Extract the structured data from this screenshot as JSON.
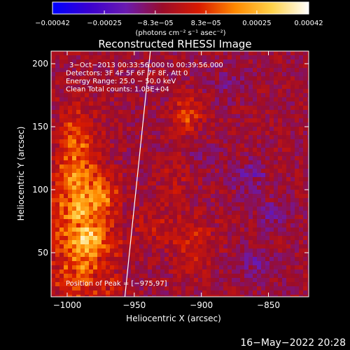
{
  "chart_data": {
    "type": "heatmap",
    "title": "Reconstructed RHESSI Image",
    "xlabel": "Heliocentric X (arcsec)",
    "ylabel": "Heliocentric Y (arcsec)",
    "xlim": [
      -1012,
      -820
    ],
    "ylim": [
      15,
      210
    ],
    "x_ticks": [
      -1000,
      -950,
      -900,
      -850
    ],
    "x_tick_labels": [
      "−1000",
      "−950",
      "−900",
      "−850"
    ],
    "y_ticks": [
      50,
      100,
      150,
      200
    ],
    "y_tick_labels": [
      "50",
      "100",
      "150",
      "200"
    ],
    "colorbar": {
      "range": [
        -0.00042,
        0.00042
      ],
      "ticks": [
        -0.00042,
        -0.00025,
        -8.3e-05,
        8.3e-05,
        0.00025,
        0.00042
      ],
      "tick_labels": [
        "−0.00042",
        "−0.00025",
        "−8.3e−05",
        "8.3e−05",
        "0.00025",
        "0.00042"
      ],
      "unit": "(photons cm⁻² s⁻¹ asec⁻²)",
      "colors": [
        "#0000ff",
        "#3a00d0",
        "#6a1ab0",
        "#9a0c2a",
        "#d81a00",
        "#ff8a00",
        "#ffd24a",
        "#ffffff"
      ]
    },
    "annotations": [
      "3−Oct−2013 00:33:56.000 to 00:39:56.000",
      "Detectors: 3F 4F 5F 6F 7F 8F, Att 0",
      "Energy Range: 25.0 − 50.0 keV",
      "Clean      Total counts: 1.03E+04"
    ],
    "peak_label": "Position of Peak = [−975,97]",
    "peak_position": [
      -975,
      97
    ],
    "limb_line": [
      [
        -957,
        15
      ],
      [
        -938,
        210
      ]
    ],
    "hot_regions": [
      {
        "x": -990,
        "y": 80,
        "sx": 18,
        "sy": 60,
        "level": 0.55
      },
      {
        "x": -982,
        "y": 60,
        "sx": 12,
        "sy": 12,
        "level": 0.28
      },
      {
        "x": -995,
        "y": 140,
        "sx": 10,
        "sy": 25,
        "level": 0.25
      },
      {
        "x": -972,
        "y": 95,
        "sx": 9,
        "sy": 10,
        "level": 0.3
      },
      {
        "x": -910,
        "y": 160,
        "sx": 10,
        "sy": 14,
        "level": 0.38
      },
      {
        "x": -920,
        "y": 110,
        "sx": 10,
        "sy": 20,
        "level": 0.14
      },
      {
        "x": -905,
        "y": 55,
        "sx": 14,
        "sy": 20,
        "level": 0.26
      },
      {
        "x": -935,
        "y": 70,
        "sx": 18,
        "sy": 16,
        "level": 0.16
      }
    ],
    "cold_regions": [
      {
        "x": -865,
        "y": 110,
        "sx": 14,
        "sy": 12,
        "level": 0.22
      },
      {
        "x": -845,
        "y": 80,
        "sx": 12,
        "sy": 12,
        "level": 0.2
      },
      {
        "x": -900,
        "y": 130,
        "sx": 12,
        "sy": 10,
        "level": 0.1
      },
      {
        "x": -860,
        "y": 40,
        "sx": 16,
        "sy": 14,
        "level": 0.18
      },
      {
        "x": -880,
        "y": 185,
        "sx": 15,
        "sy": 12,
        "level": 0.12
      }
    ]
  },
  "footer": {
    "date": "16−May−2022 20:28"
  }
}
